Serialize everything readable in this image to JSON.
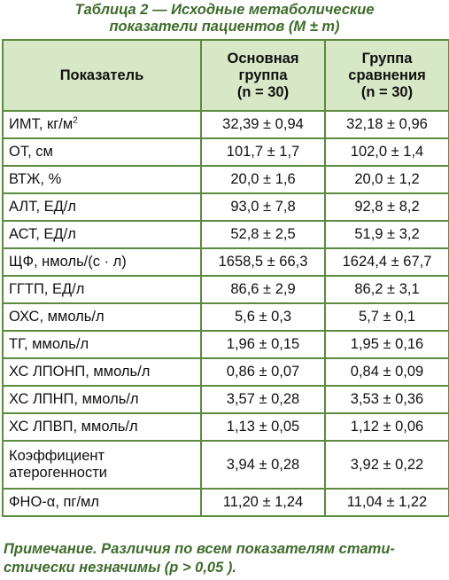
{
  "caption": {
    "line1": "Таблица 2 — Исходные метаболические",
    "line2": "показатели пациентов (M ± m)"
  },
  "table": {
    "headers": [
      {
        "lines": [
          "Показатель"
        ]
      },
      {
        "lines": [
          "Основная",
          "группа",
          "(n = 30)"
        ]
      },
      {
        "lines": [
          "Группа",
          "сравнения",
          "(n = 30)"
        ]
      }
    ],
    "rows": [
      {
        "label": "ИМТ, кг/м",
        "label_sup": "2",
        "main": "32,39 ± 0,94",
        "comparison": "32,18 ± 0,96"
      },
      {
        "label": "ОТ, см",
        "main": "101,7 ± 1,7",
        "comparison": "102,0 ± 1,4"
      },
      {
        "label": "ВТЖ, %",
        "main": "20,0 ± 1,6",
        "comparison": "20,0 ± 1,2"
      },
      {
        "label": "АЛТ, ЕД/л",
        "main": "93,0 ± 7,8",
        "comparison": "92,8 ± 8,2"
      },
      {
        "label": "АСТ, ЕД/л",
        "main": "52,8 ± 2,5",
        "comparison": "51,9 ± 3,2"
      },
      {
        "label": "ЩФ, нмоль/(с · л)",
        "main": "1658,5 ± 66,3",
        "comparison": "1624,4 ± 67,7"
      },
      {
        "label": "ГГТП, ЕД/л",
        "main": "86,6 ± 2,9",
        "comparison": "86,2 ± 3,1"
      },
      {
        "label": "ОХС, ммоль/л",
        "main": "5,6 ± 0,3",
        "comparison": "5,7 ± 0,1"
      },
      {
        "label": "ТГ, ммоль/л",
        "main": "1,96 ± 0,15",
        "comparison": "1,95 ± 0,16"
      },
      {
        "label": "ХС ЛПОНП, ммоль/л",
        "main": "0,86 ± 0,07",
        "comparison": "0,84 ± 0,09"
      },
      {
        "label": "ХС ЛПНП, ммоль/л",
        "main": "3,57 ± 0,28",
        "comparison": "3,53 ± 0,36"
      },
      {
        "label": "ХС ЛПВП, ммоль/л",
        "main": "1,13 ± 0,05",
        "comparison": "1,12 ± 0,06"
      },
      {
        "label_lines": [
          "Коэффициент",
          "атерогенности"
        ],
        "main": "3,94 ± 0,28",
        "comparison": "3,92 ± 0,22"
      },
      {
        "label": "ФНО-α, пг/мл",
        "main": "11,20 ± 1,24",
        "comparison": "11,04 ± 1,22"
      }
    ]
  },
  "note": {
    "line1": "Примечание. Различия по всем показателям стати-",
    "line2": "стически незначимы (p > 0,05 )."
  },
  "colors": {
    "caption_text": "#3f6b2c",
    "header_bg": "#d6e8c5",
    "border": "#5c8a3f"
  }
}
